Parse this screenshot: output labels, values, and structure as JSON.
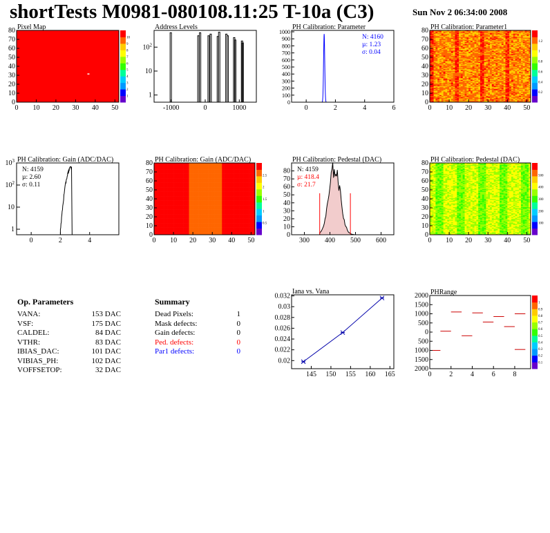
{
  "header": {
    "title": "shortTests M0981-080108.11:25 T-10a (C3)",
    "date": "Sun Nov  2 06:34:00 2008"
  },
  "colors": {
    "red": "#ff0000",
    "blue": "#0000ff",
    "palette": [
      "#6600cc",
      "#0000ff",
      "#0099ff",
      "#00ccff",
      "#00ff99",
      "#33ff00",
      "#99ff00",
      "#ffff00",
      "#ffcc00",
      "#ff6600",
      "#ff0000"
    ]
  },
  "chart_data": [
    {
      "id": "pixel_map",
      "type": "heatmap",
      "title": "Pixel Map",
      "xlim": [
        0,
        52
      ],
      "ylim": [
        0,
        80
      ],
      "xticks": [
        "0",
        "10",
        "20",
        "30",
        "40",
        "50"
      ],
      "yticks": [
        "0",
        "10",
        "20",
        "30",
        "40",
        "50",
        "60",
        "70",
        "80"
      ],
      "fill": "#ff0000",
      "colorbar_ticks": [
        "1",
        "2",
        "3",
        "4",
        "5",
        "6",
        "7",
        "8",
        "9",
        "10"
      ]
    },
    {
      "id": "address_levels",
      "type": "histogram",
      "title": "Address Levels",
      "yscale": "log",
      "xlim": [
        -1500,
        1500
      ],
      "xticks": [
        "-1000",
        "0",
        "1000"
      ],
      "yticks": [
        "1",
        "10",
        "10^2"
      ],
      "peaks": [
        -1010,
        -200,
        -150,
        100,
        160,
        370,
        410,
        620,
        660,
        850,
        880,
        1080,
        1100
      ],
      "peak_heights": [
        400,
        300,
        400,
        300,
        350,
        280,
        420,
        350,
        300,
        250,
        200,
        180,
        150
      ]
    },
    {
      "id": "ph_calib_param",
      "type": "histogram",
      "title": "PH Calibration: Parameter",
      "xlim": [
        -1,
        6
      ],
      "ylim": [
        0,
        1020
      ],
      "xticks": [
        "0",
        "2",
        "4",
        "6"
      ],
      "yticks": [
        "0",
        "100",
        "200",
        "300",
        "400",
        "500",
        "600",
        "700",
        "800",
        "900",
        "1000"
      ],
      "stats": {
        "n": "N: 4160",
        "mean": "µ: 1.23",
        "sigma": "σ: 0.04"
      },
      "mean": 1.23,
      "sigma": 0.04,
      "peak": 970
    },
    {
      "id": "ph_calib_param1",
      "type": "heatmap",
      "title": "PH Calibration: Parameter1",
      "xlim": [
        0,
        52
      ],
      "ylim": [
        0,
        80
      ],
      "xticks": [
        "0",
        "10",
        "20",
        "30",
        "40",
        "50"
      ],
      "yticks": [
        "0",
        "10",
        "20",
        "30",
        "40",
        "50",
        "60",
        "70",
        "80"
      ],
      "colorbar_ticks": [
        "0.2",
        "0.4",
        "0.6",
        "0.8",
        "1",
        "1.2"
      ]
    },
    {
      "id": "ph_gain_hist",
      "type": "histogram",
      "title": "PH Calibration: Gain (ADC/DAC)",
      "yscale": "log",
      "xlim": [
        -1,
        6
      ],
      "xticks": [
        "0",
        "2",
        "4"
      ],
      "yticks": [
        "1",
        "10",
        "10^2",
        "10^3"
      ],
      "stats": {
        "n": "N: 4159",
        "mean": "µ: 2.60",
        "sigma": "σ: 0.11"
      }
    },
    {
      "id": "ph_gain_map",
      "type": "heatmap",
      "title": "PH Calibration: Gain (ADC/DAC)",
      "xlim": [
        0,
        52
      ],
      "ylim": [
        0,
        80
      ],
      "xticks": [
        "0",
        "10",
        "20",
        "30",
        "40",
        "50"
      ],
      "yticks": [
        "0",
        "10",
        "20",
        "30",
        "40",
        "50",
        "60",
        "70",
        "80"
      ],
      "colorbar_ticks": [
        "0.5",
        "1",
        "1.5",
        "2",
        "2.5"
      ]
    },
    {
      "id": "ph_pedestal_hist",
      "type": "histogram",
      "title": "PH Calibration: Pedestal (DAC)",
      "xlim": [
        250,
        650
      ],
      "ylim": [
        0,
        90
      ],
      "xticks": [
        "300",
        "400",
        "500",
        "600"
      ],
      "yticks": [
        "0",
        "10",
        "20",
        "30",
        "40",
        "50",
        "60",
        "70",
        "80"
      ],
      "stats": {
        "n": "N: 4159",
        "mean": "µ: 418.4",
        "sigma": "σ: 21.7"
      },
      "mean": 418.4,
      "sigma": 21.7,
      "peak": 84,
      "cut_lines": [
        360,
        480
      ]
    },
    {
      "id": "ph_pedestal_map",
      "type": "heatmap",
      "title": "PH Calibration: Pedestal (DAC)",
      "xlim": [
        0,
        52
      ],
      "ylim": [
        0,
        80
      ],
      "xticks": [
        "0",
        "10",
        "20",
        "30",
        "40",
        "50"
      ],
      "yticks": [
        "0",
        "10",
        "20",
        "30",
        "40",
        "50",
        "60",
        "70",
        "80"
      ],
      "colorbar_ticks": [
        "100",
        "200",
        "300",
        "400",
        "500"
      ]
    },
    {
      "id": "iana_vana",
      "type": "line",
      "title": "Iana vs. Vana",
      "xlim": [
        140,
        166
      ],
      "ylim": [
        0.0185,
        0.0322
      ],
      "xticks": [
        "145",
        "150",
        "155",
        "160",
        "165"
      ],
      "yticks": [
        "0.02",
        "0.022",
        "0.024",
        "0.026",
        "0.028",
        "0.03",
        "0.032"
      ],
      "x": [
        143,
        153,
        163
      ],
      "y": [
        0.0198,
        0.0252,
        0.0316
      ]
    },
    {
      "id": "phrange",
      "type": "scatter",
      "title": "PHRange",
      "xlim": [
        0,
        9.5
      ],
      "ylim": [
        -2000,
        2000
      ],
      "xticks": [
        "0",
        "2",
        "4",
        "6",
        "8"
      ],
      "yticks": [
        "-2000",
        "-1500",
        "-1000",
        "-500",
        "0",
        "500",
        "1000",
        "1500",
        "2000"
      ],
      "ytick_labels_shown": [
        "2000",
        "1500",
        "1000",
        "500",
        "0",
        "500",
        "1000",
        "1500",
        "2000"
      ],
      "x": [
        0.5,
        1.5,
        2.5,
        3.5,
        4.5,
        5.5,
        6.5,
        7.5,
        8.5
      ],
      "y": [
        -1000,
        50,
        1100,
        -200,
        1050,
        550,
        850,
        300,
        1000
      ],
      "extra": [
        {
          "x": 8.5,
          "y": -950
        }
      ],
      "colorbar_ticks": [
        "0.1",
        "0.2",
        "0.3",
        "0.4",
        "0.5",
        "0.6",
        "0.7",
        "0.8",
        "0.9",
        "1"
      ]
    }
  ],
  "op_params": {
    "title": "Op. Parameters",
    "rows": [
      {
        "name": "VANA:",
        "value": "153 DAC"
      },
      {
        "name": "VSF:",
        "value": "175 DAC"
      },
      {
        "name": "CALDEL:",
        "value": "84 DAC"
      },
      {
        "name": "VTHR:",
        "value": "83 DAC"
      },
      {
        "name": "IBIAS_DAC:",
        "value": "101 DAC"
      },
      {
        "name": "VIBIAS_PH:",
        "value": "102 DAC"
      },
      {
        "name": "VOFFSETOP:",
        "value": "32 DAC"
      }
    ]
  },
  "summary": {
    "title": "Summary",
    "rows": [
      {
        "name": "Dead Pixels:",
        "value": "1",
        "color": "#000000"
      },
      {
        "name": "Mask defects:",
        "value": "0",
        "color": "#000000"
      },
      {
        "name": "Gain defects:",
        "value": "0",
        "color": "#000000"
      },
      {
        "name": "Ped. defects:",
        "value": "0",
        "color": "#ff0000"
      },
      {
        "name": "Par1 defects:",
        "value": "0",
        "color": "#0000ff"
      }
    ]
  }
}
